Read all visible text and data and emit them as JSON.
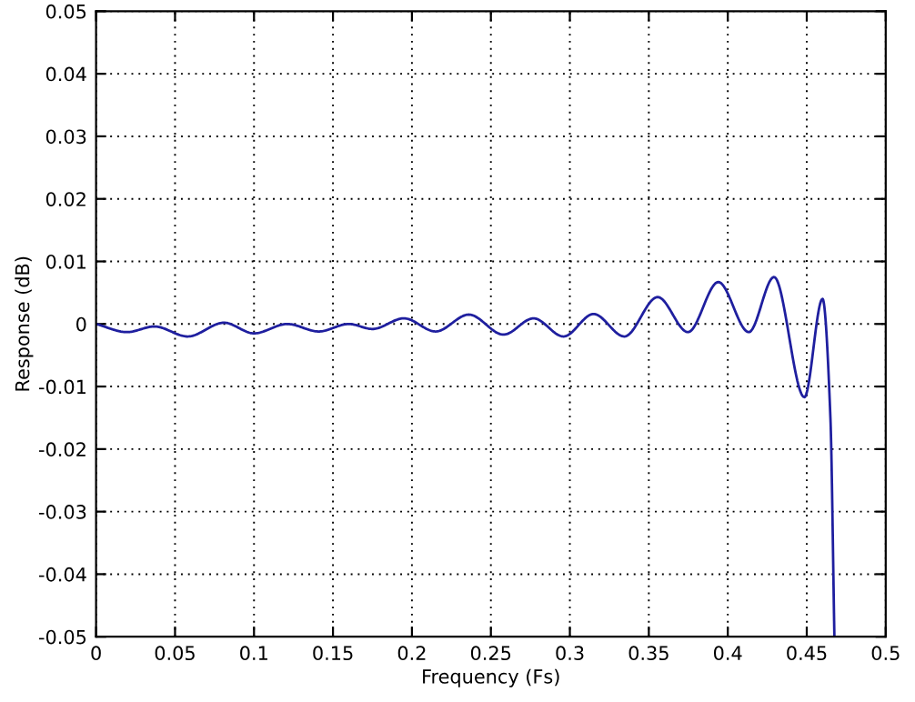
{
  "chart_data": {
    "type": "line",
    "xlabel": "Frequency (Fs)",
    "ylabel": "Response (dB)",
    "series": [
      {
        "color": "#1f1f9f",
        "x": [
          0,
          0.0196,
          0.037,
          0.058,
          0.081,
          0.1,
          0.121,
          0.141,
          0.16,
          0.175,
          0.195,
          0.215,
          0.236,
          0.258,
          0.277,
          0.296,
          0.315,
          0.3345,
          0.3556,
          0.3748,
          0.394,
          0.4133,
          0.4293,
          0.4485,
          0.46,
          0.465,
          0.4675
        ],
        "values": [
          0,
          -0.0013,
          -0.0004,
          -0.002,
          0.0002,
          -0.0015,
          0,
          -0.0012,
          0,
          -0.0008,
          0.0009,
          -0.0012,
          0.0015,
          -0.0017,
          0.0009,
          -0.002,
          0.0016,
          -0.002,
          0.0043,
          -0.0013,
          0.0067,
          -0.0013,
          0.0075,
          -0.0117,
          0.004,
          -0.0151,
          -0.05
        ]
      }
    ],
    "xlim": [
      0,
      0.5
    ],
    "xticks": [
      0,
      0.05,
      0.1,
      0.15,
      0.2,
      0.25,
      0.3,
      0.35,
      0.4,
      0.45,
      0.5
    ],
    "ylim": [
      -0.05,
      0.05
    ],
    "yticks": [
      -0.05,
      -0.04,
      -0.03,
      -0.02,
      -0.01,
      0,
      0.01,
      0.02,
      0.03,
      0.04,
      0.05
    ],
    "grid": true,
    "line_style": "solid",
    "marker": "none"
  }
}
